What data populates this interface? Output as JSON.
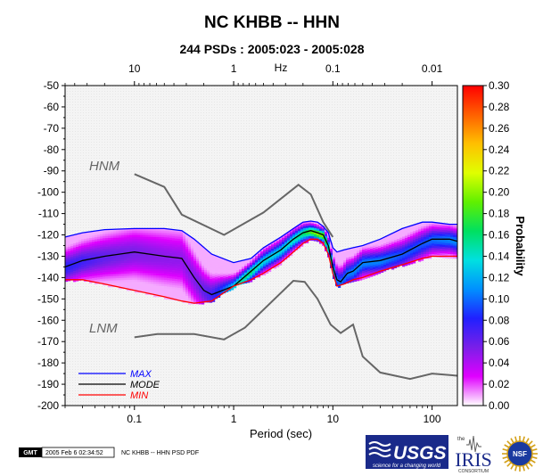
{
  "chart_data": {
    "type": "heatmap",
    "title": "NC KHBB -- HHN",
    "subtitle": "244 PSDs : 2005:023 - 2005:028",
    "xlabel": "Period (sec)",
    "top_axis_label": "Hz",
    "colorbar_label": "Probability",
    "x_scale": "log",
    "xlim": [
      0.02,
      180
    ],
    "ylim": [
      -200,
      -50
    ],
    "y_ticks": [
      "-50",
      "-60",
      "-70",
      "-80",
      "-90",
      "-100",
      "-110",
      "-120",
      "-130",
      "-140",
      "-150",
      "-160",
      "-170",
      "-180",
      "-190",
      "-200"
    ],
    "x_ticks": [
      "0.1",
      "1",
      "10",
      "100"
    ],
    "top_ticks": [
      "10",
      "1",
      "0.1",
      "0.01"
    ],
    "colorbar_ticks": [
      "0.30",
      "0.28",
      "0.26",
      "0.24",
      "0.22",
      "0.20",
      "0.18",
      "0.16",
      "0.14",
      "0.12",
      "0.10",
      "0.08",
      "0.06",
      "0.04",
      "0.02",
      "0.00"
    ],
    "colorbar_range": [
      0,
      0.3
    ],
    "colorbar_colors": [
      "#ffffff",
      "#e000ff",
      "#7a1fe8",
      "#2020ff",
      "#0090ff",
      "#00e0e0",
      "#00e060",
      "#60f000",
      "#e0ff00",
      "#ffc000",
      "#ff6000",
      "#ff0000"
    ],
    "models": [
      {
        "name": "HNM",
        "color": "#666666",
        "x": [
          0.1,
          0.2,
          0.3,
          0.8,
          2,
          4.5,
          6,
          8,
          10
        ],
        "y": [
          -91.5,
          -97.5,
          -110.5,
          -120,
          -109.5,
          -96.5,
          -101,
          -114,
          -121
        ]
      },
      {
        "name": "LNM",
        "color": "#666666",
        "x": [
          0.1,
          0.17,
          0.4,
          0.8,
          1.3,
          4,
          5.2,
          7,
          9.5,
          12,
          16,
          20,
          30,
          60,
          100,
          180
        ],
        "y": [
          -168,
          -166.5,
          -166.5,
          -169,
          -163.5,
          -141.5,
          -142,
          -150,
          -162,
          -166,
          -162,
          -177,
          -184.5,
          -187.5,
          -185,
          -186
        ]
      }
    ],
    "series": [
      {
        "name": "MAX",
        "color": "#0000ff",
        "x": [
          0.02,
          0.03,
          0.05,
          0.1,
          0.2,
          0.3,
          0.4,
          0.6,
          1,
          1.5,
          2,
          3,
          4,
          5,
          6,
          7,
          8,
          9,
          10,
          11,
          13,
          16,
          20,
          30,
          50,
          80,
          100,
          150,
          180
        ],
        "y": [
          -121,
          -119,
          -117.5,
          -117,
          -117,
          -118,
          -122,
          -129,
          -133,
          -131,
          -126,
          -121,
          -117,
          -114,
          -113.5,
          -114,
          -116,
          -119,
          -126,
          -128,
          -127,
          -126,
          -125,
          -122,
          -117,
          -114,
          -114,
          -115,
          -115
        ]
      },
      {
        "name": "MODE",
        "color": "#000000",
        "x": [
          0.02,
          0.03,
          0.05,
          0.1,
          0.2,
          0.3,
          0.4,
          0.5,
          0.6,
          1,
          1.5,
          2,
          3,
          4,
          5,
          6,
          7,
          8,
          9,
          10,
          11,
          12,
          14,
          16,
          20,
          30,
          50,
          80,
          100,
          150,
          180
        ],
        "y": [
          -135,
          -132,
          -130,
          -128,
          -130,
          -131,
          -140,
          -146,
          -148,
          -144,
          -137,
          -132,
          -127,
          -122,
          -119,
          -118,
          -119,
          -120,
          -125,
          -135,
          -141,
          -142,
          -138,
          -137,
          -133,
          -132,
          -129,
          -124,
          -122,
          -122,
          -123
        ]
      },
      {
        "name": "MIN",
        "color": "#ff0000",
        "x": [
          0.02,
          0.03,
          0.05,
          0.1,
          0.2,
          0.3,
          0.4,
          0.6,
          0.8,
          1,
          1.5,
          2,
          3,
          4,
          5,
          6,
          7,
          8,
          9,
          10,
          11,
          13,
          16,
          20,
          30,
          50,
          80,
          100,
          150,
          180
        ],
        "y": [
          -141,
          -141,
          -143,
          -146,
          -149,
          -151,
          -152,
          -151,
          -147,
          -144,
          -141,
          -138,
          -133,
          -128,
          -124,
          -122,
          -122,
          -124,
          -129,
          -138,
          -144,
          -143,
          -141,
          -140,
          -137,
          -134,
          -131,
          -130,
          -130,
          -130
        ]
      }
    ]
  },
  "footer": {
    "gmt_badge": "GMT",
    "timestamp": "2005 Feb  6 02:34:52",
    "file_label": "NC KHBB -- HHN PSD PDF",
    "usgs_text": "USGS",
    "usgs_tagline": "science for a changing world",
    "iris_the": "the",
    "iris_text": "IRIS",
    "iris_sub": "CONSORTIUM",
    "nsf_text": "NSF"
  }
}
